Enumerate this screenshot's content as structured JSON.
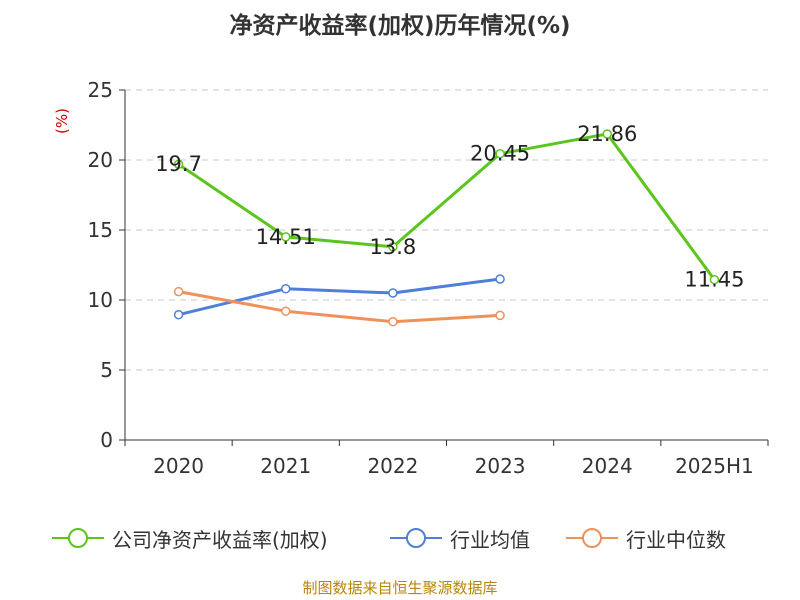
{
  "chart_data": {
    "type": "line",
    "title": "净资产收益率(加权)历年情况(%)",
    "ylabel": "(%)",
    "xlabel": "",
    "categories": [
      "2020",
      "2021",
      "2022",
      "2023",
      "2024",
      "2025H1"
    ],
    "ylim": [
      0,
      25
    ],
    "yticks": [
      0,
      5,
      10,
      15,
      20,
      25
    ],
    "grid": true,
    "legend_position": "bottom",
    "series": [
      {
        "name": "公司净资产收益率(加权)",
        "color": "#5cc51d",
        "values": [
          19.7,
          14.51,
          13.8,
          20.45,
          21.86,
          11.45
        ],
        "labels": [
          "19.7",
          "14.51",
          "13.8",
          "20.45",
          "21.86",
          "11.45"
        ]
      },
      {
        "name": "行业均值",
        "color": "#4f7fd8",
        "values": [
          8.95,
          10.8,
          10.5,
          11.5,
          null,
          null
        ]
      },
      {
        "name": "行业中位数",
        "color": "#f0905a",
        "values": [
          10.6,
          9.2,
          8.45,
          8.9,
          null,
          null
        ]
      }
    ]
  },
  "footer": "制图数据来自恒生聚源数据库"
}
